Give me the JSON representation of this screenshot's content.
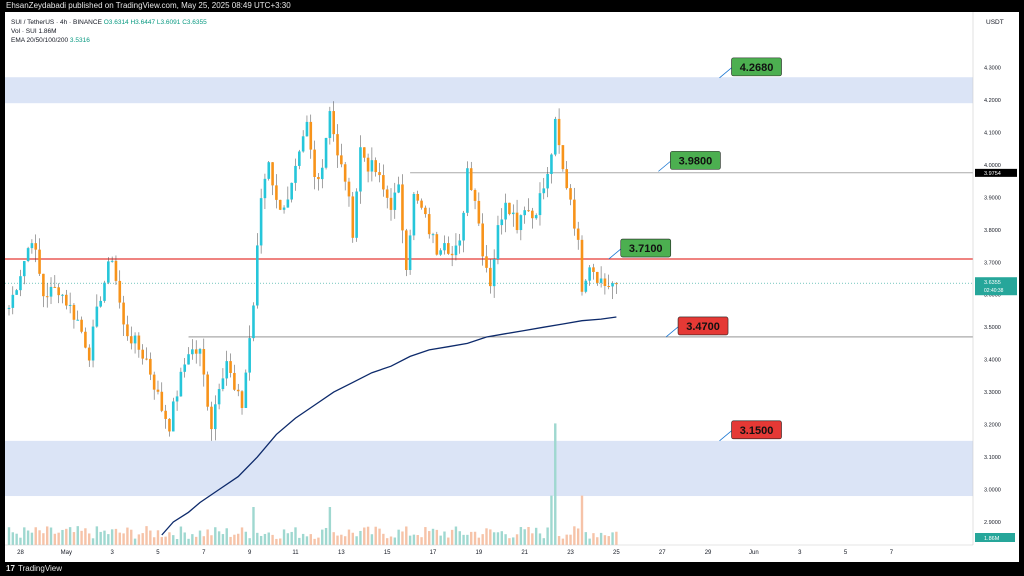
{
  "header": {
    "publisher_text": "EhsanZeydabadi published on TradingView.com, May 25, 2025 08:49 UTC+3:30"
  },
  "legend": {
    "symbol_line": "SUI / TetherUS · 4h · BINANCE",
    "ohlc": [
      "O3.6314",
      "H3.6447",
      "L3.6091",
      "C3.6355"
    ],
    "volume_line": "Vol · SUI 1.86M",
    "ema_label": "EMA 20/50/100/200",
    "ema_value": "3.5316"
  },
  "footer": {
    "logo_mark": "17",
    "brand": "TradingView"
  },
  "colors": {
    "up": "#26c6da",
    "down": "#f7931a",
    "zone": "#dbe4f6",
    "resistance_line": "#e53935",
    "ema_line": "#0d2a6b",
    "label_green": "#4caf50",
    "label_red": "#e53935"
  },
  "chart_data": {
    "type": "candlestick",
    "title": "SUI / TetherUS · 4h · BINANCE",
    "currency": "USDT",
    "ylim": [
      2.86,
      4.36
    ],
    "y_ticks": [
      "4.3000",
      "4.2000",
      "4.1000",
      "4.0000",
      "3.9000",
      "3.8000",
      "3.7000",
      "3.6000",
      "3.5000",
      "3.4000",
      "3.3000",
      "3.2000",
      "3.1000",
      "3.0000",
      "2.9000"
    ],
    "x_tick_labels": [
      "28",
      "May",
      "3",
      "5",
      "7",
      "9",
      "11",
      "13",
      "15",
      "17",
      "19",
      "21",
      "23",
      "25",
      "27",
      "29",
      "Jun",
      "3",
      "5",
      "7"
    ],
    "x_tick_index": [
      3,
      15,
      27,
      39,
      51,
      63,
      75,
      87,
      99,
      111,
      123,
      135,
      147,
      159,
      171,
      183,
      195,
      207,
      219,
      231
    ],
    "price_tag": "3.6355",
    "countdown_tag": "02:40:38",
    "line_tag": "3.9754",
    "volume_tag": "1.86M",
    "zones": [
      {
        "from": 4.19,
        "to": 4.27
      },
      {
        "from": 2.98,
        "to": 3.15
      }
    ],
    "hlines": [
      {
        "value": 3.71,
        "style": "resistance"
      },
      {
        "value": 3.9754,
        "style": "thin",
        "from_index": 105
      },
      {
        "value": 3.47,
        "style": "thin",
        "from_index": 47
      }
    ],
    "level_labels": [
      {
        "text": "4.2680",
        "value": 4.268,
        "color": "green",
        "index": 186
      },
      {
        "text": "3.9800",
        "value": 3.98,
        "color": "green",
        "index": 170
      },
      {
        "text": "3.7100",
        "value": 3.71,
        "color": "green",
        "index": 157
      },
      {
        "text": "3.4700",
        "value": 3.47,
        "color": "red",
        "index": 172
      },
      {
        "text": "3.1500",
        "value": 3.15,
        "color": "red",
        "index": 186
      }
    ],
    "anchors": [
      [
        0,
        3.56
      ],
      [
        6,
        3.78
      ],
      [
        9,
        3.6
      ],
      [
        13,
        3.62
      ],
      [
        18,
        3.52
      ],
      [
        21,
        3.42
      ],
      [
        24,
        3.6
      ],
      [
        27,
        3.72
      ],
      [
        30,
        3.5
      ],
      [
        36,
        3.4
      ],
      [
        40,
        3.25
      ],
      [
        42,
        3.2
      ],
      [
        44,
        3.3
      ],
      [
        47,
        3.43
      ],
      [
        50,
        3.42
      ],
      [
        53,
        3.2
      ],
      [
        55,
        3.33
      ],
      [
        57,
        3.4
      ],
      [
        59,
        3.3
      ],
      [
        61,
        3.26
      ],
      [
        64,
        3.57
      ],
      [
        66,
        3.9
      ],
      [
        68,
        4.02
      ],
      [
        70,
        3.88
      ],
      [
        73,
        3.88
      ],
      [
        76,
        4.02
      ],
      [
        78,
        4.12
      ],
      [
        80,
        3.96
      ],
      [
        82,
        4.0
      ],
      [
        84,
        4.18
      ],
      [
        86,
        4.02
      ],
      [
        88,
        3.96
      ],
      [
        90,
        3.8
      ],
      [
        92,
        4.05
      ],
      [
        94,
        4.0
      ],
      [
        96,
        3.98
      ],
      [
        98,
        3.92
      ],
      [
        100,
        3.88
      ],
      [
        102,
        3.92
      ],
      [
        104,
        3.7
      ],
      [
        106,
        3.9
      ],
      [
        108,
        3.86
      ],
      [
        110,
        3.8
      ],
      [
        112,
        3.74
      ],
      [
        114,
        3.78
      ],
      [
        116,
        3.72
      ],
      [
        118,
        3.75
      ],
      [
        120,
        3.99
      ],
      [
        122,
        3.9
      ],
      [
        124,
        3.74
      ],
      [
        126,
        3.64
      ],
      [
        128,
        3.8
      ],
      [
        130,
        3.9
      ],
      [
        133,
        3.82
      ],
      [
        135,
        3.88
      ],
      [
        137,
        3.84
      ],
      [
        139,
        3.9
      ],
      [
        141,
        3.96
      ],
      [
        143,
        4.12
      ],
      [
        145,
        3.98
      ],
      [
        147,
        3.9
      ],
      [
        149,
        3.75
      ],
      [
        150,
        3.63
      ],
      [
        152,
        3.7
      ],
      [
        154,
        3.66
      ],
      [
        156,
        3.63
      ],
      [
        159,
        3.6355
      ]
    ],
    "ema": [
      [
        40,
        2.86
      ],
      [
        43,
        2.9
      ],
      [
        47,
        2.93
      ],
      [
        50,
        2.96
      ],
      [
        55,
        3.0
      ],
      [
        60,
        3.04
      ],
      [
        65,
        3.1
      ],
      [
        70,
        3.17
      ],
      [
        75,
        3.22
      ],
      [
        80,
        3.26
      ],
      [
        85,
        3.3
      ],
      [
        90,
        3.33
      ],
      [
        95,
        3.36
      ],
      [
        100,
        3.38
      ],
      [
        105,
        3.41
      ],
      [
        110,
        3.43
      ],
      [
        115,
        3.44
      ],
      [
        120,
        3.45
      ],
      [
        125,
        3.47
      ],
      [
        130,
        3.48
      ],
      [
        135,
        3.49
      ],
      [
        140,
        3.5
      ],
      [
        145,
        3.51
      ],
      [
        150,
        3.52
      ],
      [
        155,
        3.525
      ],
      [
        159,
        3.5316
      ]
    ],
    "volume_max": 1.0,
    "volume_series_note": "bars colored by candle direction"
  }
}
